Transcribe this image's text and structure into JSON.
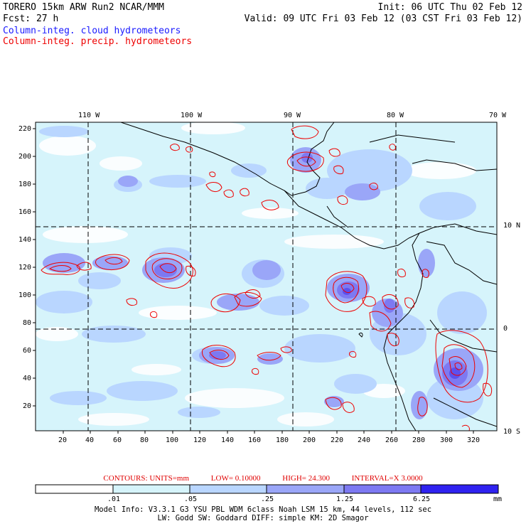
{
  "header": {
    "line1_left": "TORERO  15km ARW   Run2    NCAR/MMM",
    "line2_left": "Fcst:    27 h",
    "line1_right": "Init: 06 UTC Thu 02 Feb 12",
    "line2_right": "Valid: 09 UTC Fri 03 Feb 12 (03 CST Fri 03 Feb 12)",
    "legend_cloud": "Column-integ. cloud hydrometeors",
    "legend_precip": "Column-integ. precip. hydrometeors"
  },
  "colors": {
    "cloud_text": "#1a1aff",
    "precip_contour": "#ee0000",
    "fill_levels": [
      "#ffffff",
      "#d6f4fb",
      "#b9d6ff",
      "#9aa6f8",
      "#7d79f2",
      "#5c50ee",
      "#2f22f0"
    ]
  },
  "map": {
    "lon_labels": [
      "110 W",
      "100 W",
      "90 W",
      "80 W",
      "70 W"
    ],
    "lat_labels": [
      "10 N",
      "0",
      "10 S"
    ],
    "y_ticks": [
      "220",
      "200",
      "180",
      "160",
      "140",
      "120",
      "100",
      "80",
      "60",
      "40",
      "20"
    ],
    "x_ticks": [
      "20",
      "40",
      "60",
      "80",
      "100",
      "120",
      "140",
      "160",
      "180",
      "200",
      "220",
      "240",
      "260",
      "280",
      "300",
      "320"
    ]
  },
  "contour_info": {
    "label": "CONTOURS:  UNITS=mm",
    "low": "LOW= 0.10000",
    "high": "HIGH=  24.300",
    "interval": "INTERVAL=X  3.0000"
  },
  "colorbar": {
    "labels": [
      ".01",
      ".05",
      ".25",
      "1.25",
      "6.25"
    ],
    "units": "mm"
  },
  "model_info": {
    "line1": "Model Info: V3.3.1    G3      YSU PBL   WDM 6class   Noah LSM   15 km,    44 levels,   112 sec",
    "line2": "LW: Godd SW: Goddard DIFF: simple KM: 2D Smagor"
  }
}
